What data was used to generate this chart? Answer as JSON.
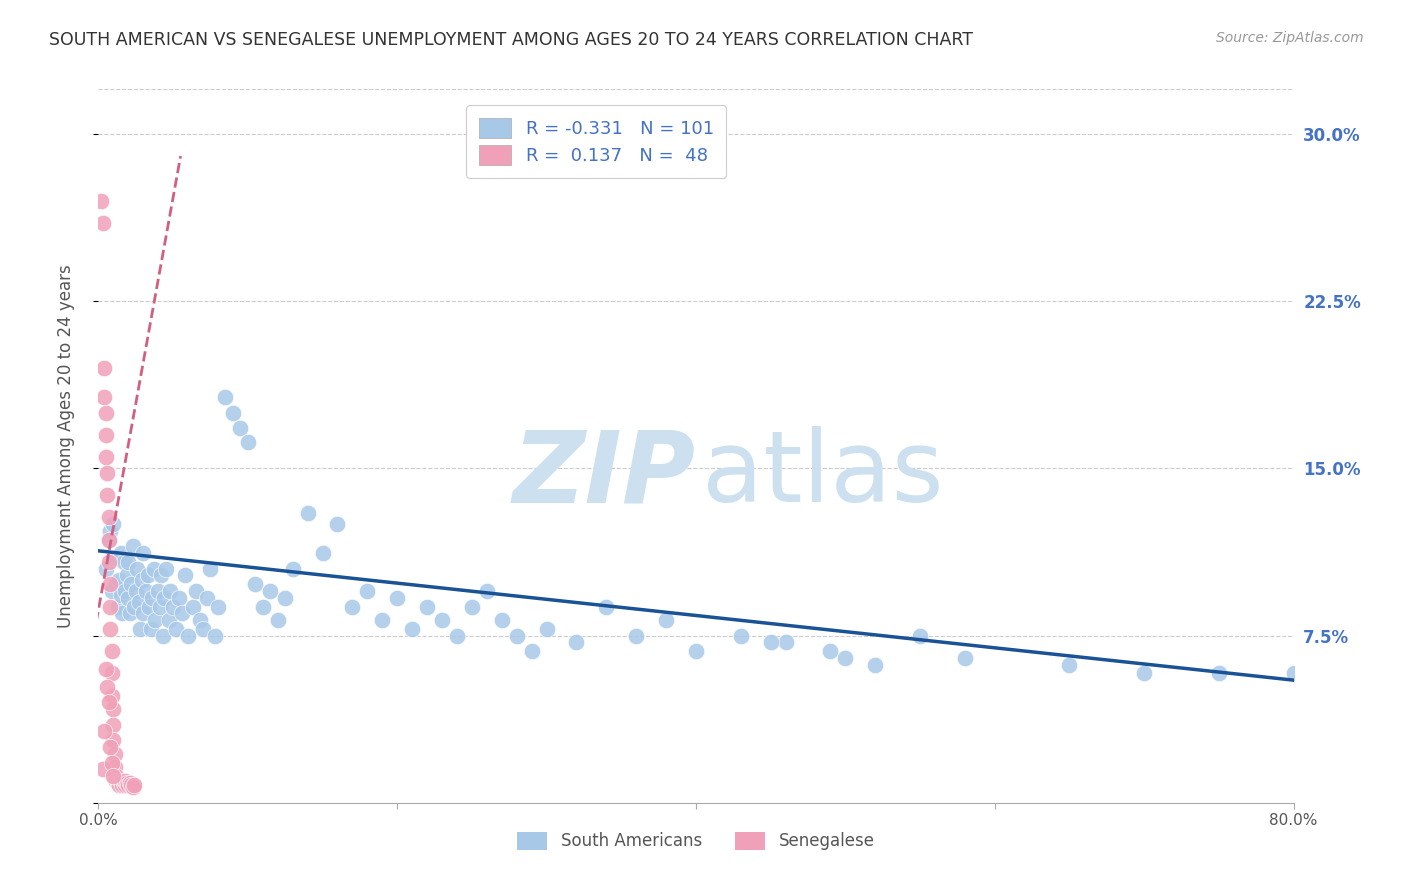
{
  "title": "SOUTH AMERICAN VS SENEGALESE UNEMPLOYMENT AMONG AGES 20 TO 24 YEARS CORRELATION CHART",
  "source": "Source: ZipAtlas.com",
  "ylabel": "Unemployment Among Ages 20 to 24 years",
  "ytick_labels_right": [
    "",
    "7.5%",
    "15.0%",
    "22.5%",
    "30.0%"
  ],
  "xlim": [
    0.0,
    0.8
  ],
  "ylim": [
    0.0,
    0.32
  ],
  "legend_R_blue": "-0.331",
  "legend_N_blue": "101",
  "legend_R_pink": "0.137",
  "legend_N_pink": "48",
  "legend_label_blue": "South Americans",
  "legend_label_pink": "Senegalese",
  "blue_color": "#a8c8e8",
  "pink_color": "#f0a0b8",
  "blue_line_color": "#1a5296",
  "pink_line_color": "#d06080",
  "right_tick_color": "#4472c4",
  "axis_label_color": "#555555",
  "blue_trendline_x": [
    0.0,
    0.8
  ],
  "blue_trendline_y": [
    0.113,
    0.055
  ],
  "pink_trendline_x": [
    -0.005,
    0.055
  ],
  "pink_trendline_y": [
    0.068,
    0.29
  ],
  "grid_color": "#cccccc",
  "background_color": "#ffffff",
  "sa_x": [
    0.005,
    0.007,
    0.008,
    0.009,
    0.01,
    0.01,
    0.012,
    0.013,
    0.014,
    0.015,
    0.015,
    0.016,
    0.017,
    0.018,
    0.019,
    0.02,
    0.02,
    0.021,
    0.022,
    0.023,
    0.024,
    0.025,
    0.026,
    0.027,
    0.028,
    0.029,
    0.03,
    0.03,
    0.032,
    0.033,
    0.034,
    0.035,
    0.036,
    0.037,
    0.038,
    0.04,
    0.041,
    0.042,
    0.043,
    0.044,
    0.045,
    0.047,
    0.048,
    0.05,
    0.052,
    0.054,
    0.056,
    0.058,
    0.06,
    0.063,
    0.065,
    0.068,
    0.07,
    0.073,
    0.075,
    0.078,
    0.08,
    0.085,
    0.09,
    0.095,
    0.1,
    0.105,
    0.11,
    0.115,
    0.12,
    0.125,
    0.13,
    0.14,
    0.15,
    0.16,
    0.17,
    0.18,
    0.19,
    0.2,
    0.21,
    0.22,
    0.23,
    0.24,
    0.25,
    0.26,
    0.27,
    0.28,
    0.29,
    0.3,
    0.32,
    0.34,
    0.36,
    0.38,
    0.4,
    0.43,
    0.46,
    0.49,
    0.52,
    0.55,
    0.58,
    0.45,
    0.5,
    0.65,
    0.7,
    0.75,
    0.8
  ],
  "sa_y": [
    0.105,
    0.118,
    0.122,
    0.095,
    0.11,
    0.125,
    0.098,
    0.088,
    0.1,
    0.112,
    0.093,
    0.085,
    0.108,
    0.095,
    0.102,
    0.092,
    0.108,
    0.085,
    0.098,
    0.115,
    0.088,
    0.095,
    0.105,
    0.09,
    0.078,
    0.1,
    0.112,
    0.085,
    0.095,
    0.102,
    0.088,
    0.078,
    0.092,
    0.105,
    0.082,
    0.095,
    0.088,
    0.102,
    0.075,
    0.092,
    0.105,
    0.082,
    0.095,
    0.088,
    0.078,
    0.092,
    0.085,
    0.102,
    0.075,
    0.088,
    0.095,
    0.082,
    0.078,
    0.092,
    0.105,
    0.075,
    0.088,
    0.182,
    0.175,
    0.168,
    0.162,
    0.098,
    0.088,
    0.095,
    0.082,
    0.092,
    0.105,
    0.13,
    0.112,
    0.125,
    0.088,
    0.095,
    0.082,
    0.092,
    0.078,
    0.088,
    0.082,
    0.075,
    0.088,
    0.095,
    0.082,
    0.075,
    0.068,
    0.078,
    0.072,
    0.088,
    0.075,
    0.082,
    0.068,
    0.075,
    0.072,
    0.068,
    0.062,
    0.075,
    0.065,
    0.072,
    0.065,
    0.062,
    0.058,
    0.058,
    0.058
  ],
  "sn_x": [
    0.002,
    0.003,
    0.004,
    0.004,
    0.005,
    0.005,
    0.005,
    0.006,
    0.006,
    0.007,
    0.007,
    0.007,
    0.008,
    0.008,
    0.008,
    0.009,
    0.009,
    0.009,
    0.01,
    0.01,
    0.01,
    0.011,
    0.011,
    0.012,
    0.012,
    0.013,
    0.013,
    0.014,
    0.015,
    0.015,
    0.016,
    0.017,
    0.018,
    0.018,
    0.019,
    0.02,
    0.021,
    0.022,
    0.023,
    0.024,
    0.005,
    0.006,
    0.007,
    0.004,
    0.003,
    0.008,
    0.009,
    0.01
  ],
  "sn_y": [
    0.27,
    0.26,
    0.195,
    0.182,
    0.175,
    0.165,
    0.155,
    0.148,
    0.138,
    0.128,
    0.118,
    0.108,
    0.098,
    0.088,
    0.078,
    0.068,
    0.058,
    0.048,
    0.042,
    0.035,
    0.028,
    0.022,
    0.016,
    0.012,
    0.01,
    0.01,
    0.009,
    0.008,
    0.01,
    0.009,
    0.008,
    0.009,
    0.008,
    0.01,
    0.009,
    0.008,
    0.009,
    0.008,
    0.007,
    0.008,
    0.06,
    0.052,
    0.045,
    0.032,
    0.015,
    0.025,
    0.018,
    0.012
  ]
}
